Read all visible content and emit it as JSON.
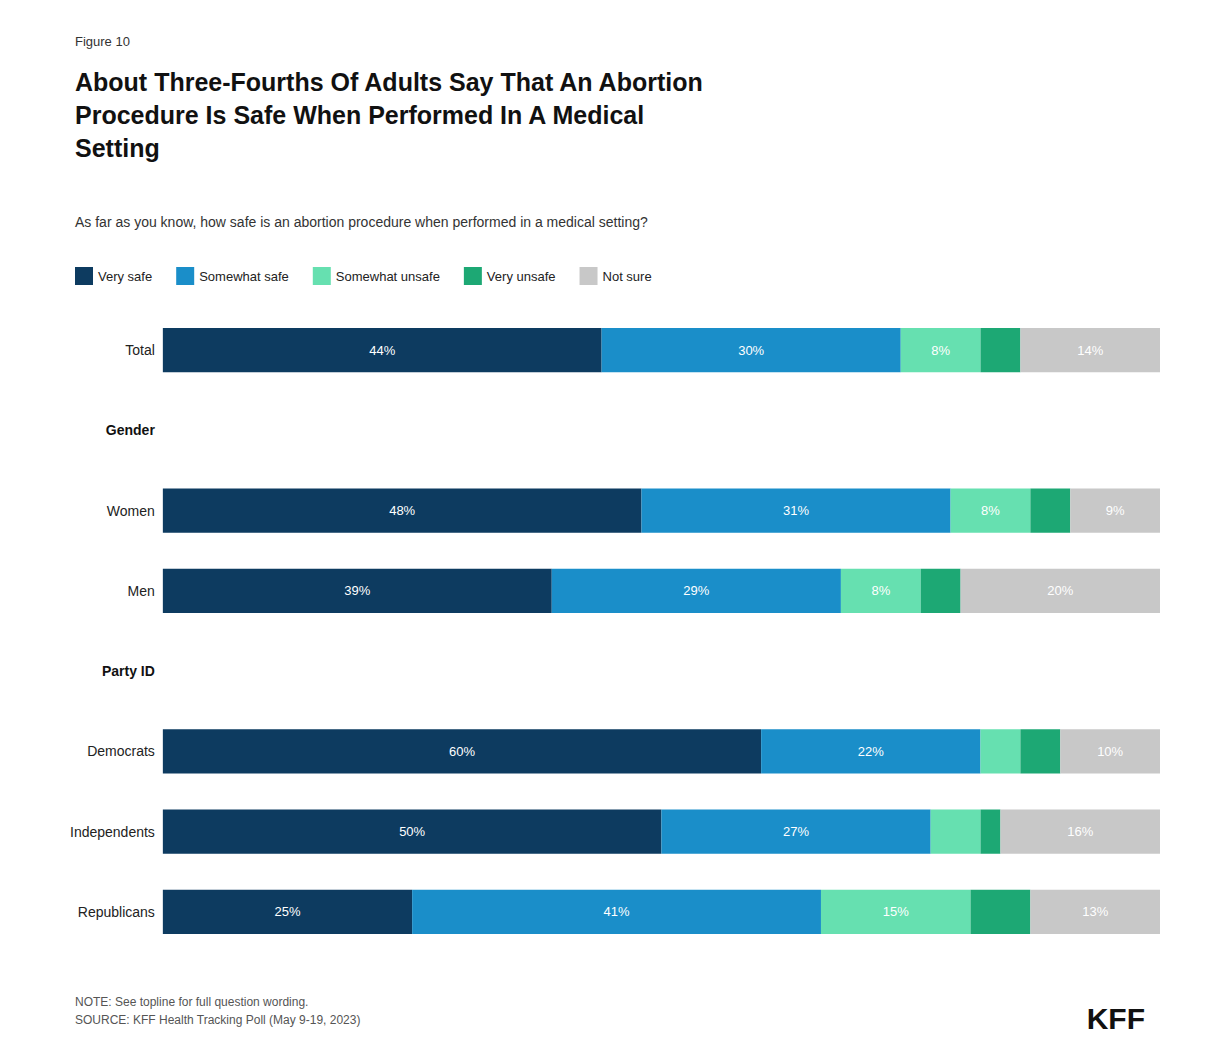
{
  "chart_data": {
    "type": "bar",
    "orientation": "horizontal",
    "stacked": true,
    "figure_label": "Figure 10",
    "title": "About Three-Fourths Of Adults Say That An Abortion\nProcedure Is Safe When Performed In A Medical\nSetting",
    "subtitle": "As far as you know, how safe is an abortion procedure when performed in a medical setting?",
    "note": "NOTE: See topline for full question wording.\nSOURCE: KFF Health Tracking Poll (May 9-19, 2023)",
    "brand": "KFF",
    "categories": [
      "Total",
      "Gender",
      "Women",
      "Men",
      "Party ID",
      "Democrats",
      "Independents",
      "Republicans"
    ],
    "series": [
      {
        "name": "Very safe",
        "color": "#0d3b60",
        "values": [
          44,
          null,
          48,
          39,
          null,
          60,
          50,
          25
        ],
        "value_labels": [
          "44%",
          null,
          "48%",
          "39%",
          null,
          "60%",
          "50%",
          "25%"
        ]
      },
      {
        "name": "Somewhat safe",
        "color": "#1a8ec9",
        "values": [
          30,
          null,
          31,
          29,
          null,
          22,
          27,
          41
        ],
        "value_labels": [
          "30%",
          null,
          "31%",
          "29%",
          null,
          "22%",
          "27%",
          "41%"
        ]
      },
      {
        "name": "Somewhat unsafe",
        "color": "#66e0b0",
        "values": [
          8,
          null,
          8,
          8,
          null,
          4,
          5,
          15
        ],
        "value_labels": [
          "8%",
          null,
          "8%",
          "8%",
          null,
          null,
          null,
          "15%"
        ]
      },
      {
        "name": "Very unsafe",
        "color": "#1da874",
        "values": [
          4,
          null,
          4,
          4,
          null,
          4,
          2,
          6
        ],
        "value_labels": [
          null,
          null,
          null,
          null,
          null,
          null,
          null,
          null
        ]
      },
      {
        "name": "Not sure",
        "color": "#c8c8c8",
        "values": [
          14,
          null,
          9,
          20,
          null,
          10,
          16,
          13
        ],
        "value_labels": [
          "14%",
          null,
          "9%",
          "20%",
          null,
          "10%",
          "16%",
          "13%"
        ]
      }
    ],
    "xlim": [
      0,
      100
    ],
    "data_labels": true,
    "tick_labels": "y",
    "grid": false,
    "legend": "upper left"
  }
}
